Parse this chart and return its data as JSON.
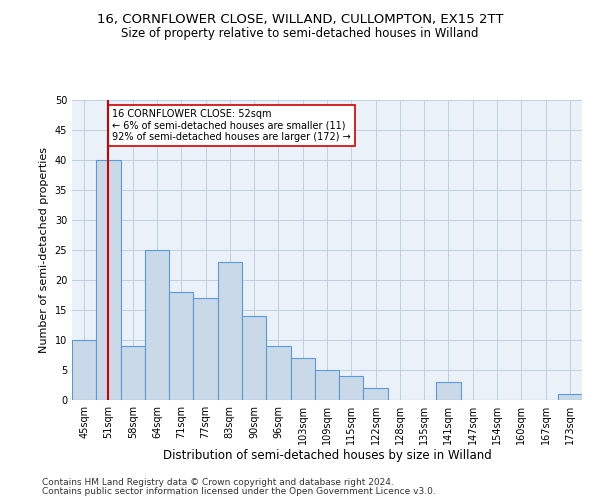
{
  "title1": "16, CORNFLOWER CLOSE, WILLAND, CULLOMPTON, EX15 2TT",
  "title2": "Size of property relative to semi-detached houses in Willand",
  "xlabel": "Distribution of semi-detached houses by size in Willand",
  "ylabel": "Number of semi-detached properties",
  "categories": [
    "45sqm",
    "51sqm",
    "58sqm",
    "64sqm",
    "71sqm",
    "77sqm",
    "83sqm",
    "90sqm",
    "96sqm",
    "103sqm",
    "109sqm",
    "115sqm",
    "122sqm",
    "128sqm",
    "135sqm",
    "141sqm",
    "147sqm",
    "154sqm",
    "160sqm",
    "167sqm",
    "173sqm"
  ],
  "values": [
    10,
    40,
    9,
    25,
    18,
    17,
    23,
    14,
    9,
    7,
    5,
    4,
    2,
    0,
    0,
    3,
    0,
    0,
    0,
    0,
    1
  ],
  "bar_color": "#c9d9e8",
  "bar_edge_color": "#5b9bd5",
  "vline_x": 1.0,
  "vline_color": "#cc0000",
  "annotation_text": "16 CORNFLOWER CLOSE: 52sqm\n← 6% of semi-detached houses are smaller (11)\n92% of semi-detached houses are larger (172) →",
  "annotation_box_color": "#ffffff",
  "annotation_box_edge": "#cc0000",
  "ylim": [
    0,
    50
  ],
  "yticks": [
    0,
    5,
    10,
    15,
    20,
    25,
    30,
    35,
    40,
    45,
    50
  ],
  "footer1": "Contains HM Land Registry data © Crown copyright and database right 2024.",
  "footer2": "Contains public sector information licensed under the Open Government Licence v3.0.",
  "background_color": "#ffffff",
  "grid_color": "#c0cfe0",
  "title1_fontsize": 9.5,
  "title2_fontsize": 8.5,
  "axis_label_fontsize": 8,
  "tick_fontsize": 7,
  "footer_fontsize": 6.5
}
